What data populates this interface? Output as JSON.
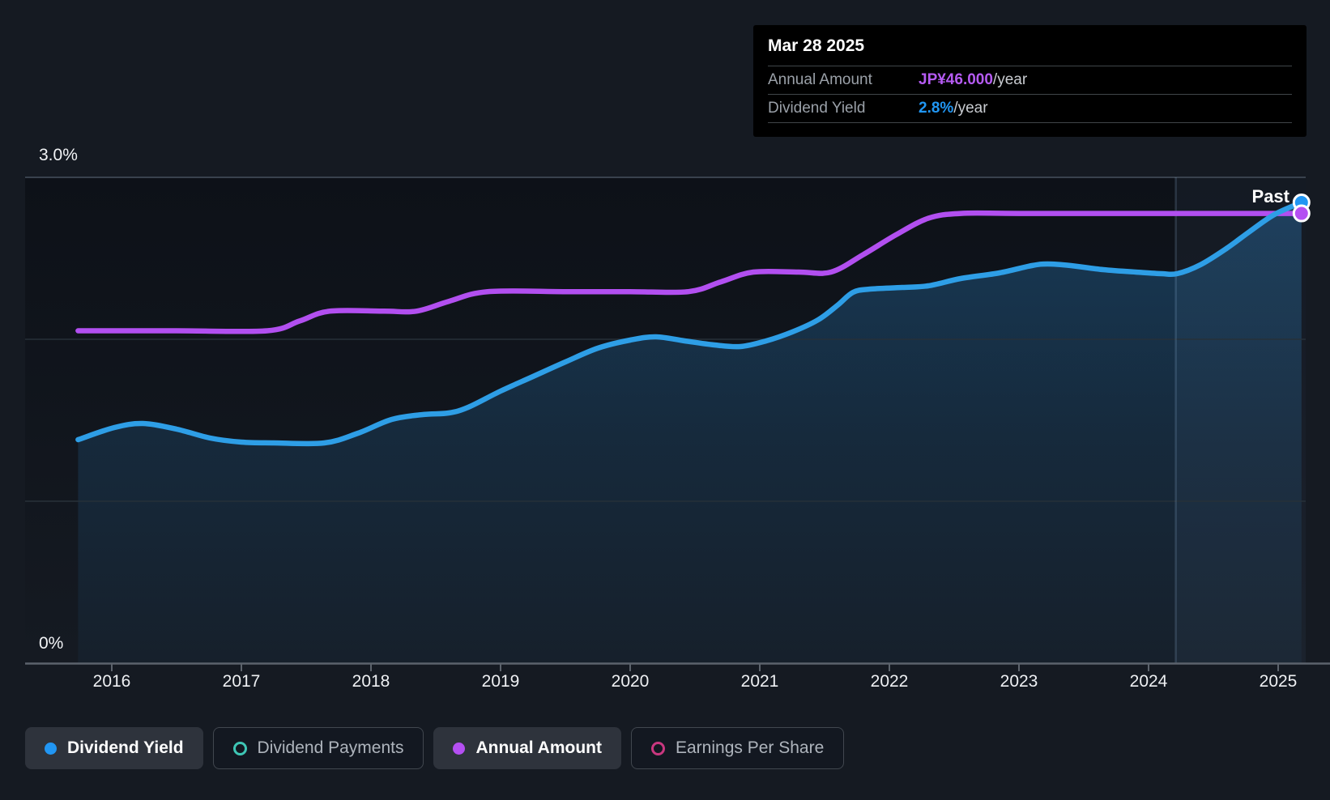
{
  "page": {
    "background": "#151a22"
  },
  "tooltip": {
    "date": "Mar 28 2025",
    "rows": [
      {
        "label": "Annual Amount",
        "value": "JP¥46.000",
        "suffix": "/year",
        "value_color": "#b55bf2"
      },
      {
        "label": "Dividend Yield",
        "value": "2.8%",
        "suffix": "/year",
        "value_color": "#2196f3"
      }
    ]
  },
  "chart_data": {
    "type": "area",
    "past_label": "Past",
    "x_axis": {
      "tick_labels": [
        "2016",
        "2017",
        "2018",
        "2019",
        "2020",
        "2021",
        "2022",
        "2023",
        "2024",
        "2025"
      ],
      "range_years": [
        2015.55,
        2025.25
      ]
    },
    "y_axis": {
      "unit": "percent",
      "visible_tick_labels": [
        "3.0%",
        "0%"
      ],
      "gridline_values_pct": [
        3,
        2,
        1,
        0
      ],
      "range_pct": [
        0,
        3.2
      ]
    },
    "past_year_highlight": {
      "start_year": 2024.21,
      "end_year": 2025.21
    },
    "series": [
      {
        "name": "Dividend Yield",
        "unit": "percent",
        "color": "#2e9ee6",
        "marker_color": "#2196f3",
        "style": "smooth-line-with-area",
        "end_value_label": "2.8%/year",
        "points": [
          [
            2015.74,
            1.38
          ],
          [
            2016.02,
            1.455
          ],
          [
            2016.24,
            1.48
          ],
          [
            2016.5,
            1.445
          ],
          [
            2016.76,
            1.39
          ],
          [
            2017.0,
            1.365
          ],
          [
            2017.25,
            1.36
          ],
          [
            2017.64,
            1.36
          ],
          [
            2017.9,
            1.42
          ],
          [
            2018.16,
            1.505
          ],
          [
            2018.4,
            1.535
          ],
          [
            2018.6,
            1.545
          ],
          [
            2018.75,
            1.58
          ],
          [
            2019.0,
            1.68
          ],
          [
            2019.25,
            1.77
          ],
          [
            2019.5,
            1.86
          ],
          [
            2019.75,
            1.945
          ],
          [
            2020.0,
            1.995
          ],
          [
            2020.2,
            2.015
          ],
          [
            2020.42,
            1.99
          ],
          [
            2020.65,
            1.965
          ],
          [
            2020.85,
            1.955
          ],
          [
            2021.05,
            1.99
          ],
          [
            2021.25,
            2.045
          ],
          [
            2021.45,
            2.12
          ],
          [
            2021.6,
            2.21
          ],
          [
            2021.72,
            2.29
          ],
          [
            2021.85,
            2.31
          ],
          [
            2022.1,
            2.32
          ],
          [
            2022.3,
            2.33
          ],
          [
            2022.55,
            2.375
          ],
          [
            2022.85,
            2.41
          ],
          [
            2023.1,
            2.455
          ],
          [
            2023.22,
            2.465
          ],
          [
            2023.4,
            2.455
          ],
          [
            2023.65,
            2.43
          ],
          [
            2023.9,
            2.415
          ],
          [
            2024.1,
            2.405
          ],
          [
            2024.22,
            2.405
          ],
          [
            2024.4,
            2.46
          ],
          [
            2024.6,
            2.56
          ],
          [
            2024.78,
            2.665
          ],
          [
            2024.97,
            2.77
          ],
          [
            2025.18,
            2.845
          ]
        ]
      },
      {
        "name": "Annual Amount",
        "unit": "jpy_per_year",
        "color": "#b24ff0",
        "marker_color": "#b44ff2",
        "style": "smooth-step-line",
        "end_value_label": "JP¥46.000/year",
        "points": [
          [
            2015.74,
            34
          ],
          [
            2016.5,
            34
          ],
          [
            2017.2,
            34
          ],
          [
            2017.45,
            35
          ],
          [
            2017.68,
            36
          ],
          [
            2018.1,
            36
          ],
          [
            2018.35,
            36
          ],
          [
            2018.6,
            37
          ],
          [
            2018.9,
            38
          ],
          [
            2019.5,
            38
          ],
          [
            2020.0,
            38
          ],
          [
            2020.45,
            38
          ],
          [
            2020.7,
            39
          ],
          [
            2020.95,
            40
          ],
          [
            2021.3,
            40
          ],
          [
            2021.55,
            40
          ],
          [
            2021.8,
            41.8
          ],
          [
            2022.05,
            43.8
          ],
          [
            2022.3,
            45.5
          ],
          [
            2022.55,
            46
          ],
          [
            2023.0,
            46
          ],
          [
            2024.0,
            46
          ],
          [
            2025.18,
            46
          ]
        ]
      }
    ]
  },
  "legend": {
    "items": [
      {
        "label": "Dividend Yield",
        "active": true,
        "marker": "filled",
        "color": "#2196f3"
      },
      {
        "label": "Dividend Payments",
        "active": false,
        "marker": "ring",
        "color": "#3ec6b5"
      },
      {
        "label": "Annual Amount",
        "active": true,
        "marker": "filled",
        "color": "#b44ff2"
      },
      {
        "label": "Earnings Per Share",
        "active": false,
        "marker": "ring",
        "color": "#c9377f"
      }
    ]
  }
}
